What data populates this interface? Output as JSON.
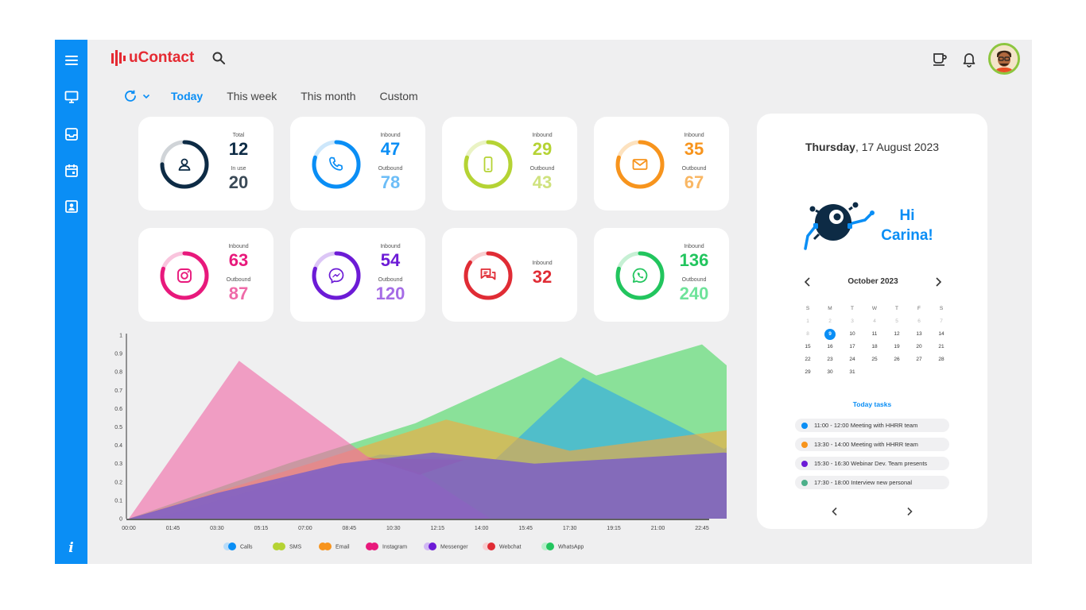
{
  "app": {
    "name": "uContact"
  },
  "sidebar": {
    "items": [
      {
        "name": "menu",
        "icon": "hamburger-menu-icon"
      },
      {
        "name": "monitor",
        "icon": "monitor-icon"
      },
      {
        "name": "inbox",
        "icon": "inbox-icon"
      },
      {
        "name": "calendar",
        "icon": "calendar-icon"
      },
      {
        "name": "contacts",
        "icon": "contact-card-icon"
      }
    ],
    "info_label": "i"
  },
  "period": {
    "tabs": [
      {
        "label": "Today",
        "active": true
      },
      {
        "label": "This week",
        "active": false
      },
      {
        "label": "This month",
        "active": false
      },
      {
        "label": "Custom",
        "active": false
      }
    ]
  },
  "cards": [
    {
      "id": "agents",
      "icon": "user-icon",
      "color": "#0d2b45",
      "light": "#d0d4d8",
      "label1": "Total",
      "value1": "12",
      "label2": "In use",
      "value2": "20",
      "value2_color": "#3b4a57",
      "fill": 0.75
    },
    {
      "id": "calls",
      "icon": "phone-icon",
      "color": "#0a8ef5",
      "light": "#cde7fb",
      "label1": "Inbound",
      "value1": "47",
      "label2": "Outbound",
      "value2": "78",
      "value2_color": "#6cbdf7",
      "fill": 0.8
    },
    {
      "id": "sms",
      "icon": "mobile-icon",
      "color": "#b5d334",
      "light": "#eaf3c4",
      "label1": "Inbound",
      "value1": "29",
      "label2": "Outbound",
      "value2": "43",
      "value2_color": "#cfe27e",
      "fill": 0.8
    },
    {
      "id": "email",
      "icon": "envelope-icon",
      "color": "#f7941d",
      "light": "#fde2bf",
      "label1": "Inbound",
      "value1": "35",
      "label2": "Outbound",
      "value2": "67",
      "value2_color": "#f9b764",
      "fill": 0.8
    },
    {
      "id": "instagram",
      "icon": "instagram-icon",
      "color": "#e8197c",
      "light": "#f9c4dd",
      "label1": "Inbound",
      "value1": "63",
      "label2": "Outbound",
      "value2": "87",
      "value2_color": "#ef6aa8",
      "fill": 0.8
    },
    {
      "id": "messenger",
      "icon": "messenger-icon",
      "color": "#6c1bd6",
      "light": "#dcc6f6",
      "label1": "Inbound",
      "value1": "54",
      "label2": "Outbound",
      "value2": "120",
      "value2_color": "#a56ce6",
      "fill": 0.8
    },
    {
      "id": "webchat",
      "icon": "chat-bubbles-icon",
      "color": "#e02c35",
      "light": "#f8cfd1",
      "label1": "Inbound",
      "value1": "32",
      "fill": 0.85
    },
    {
      "id": "whatsapp",
      "icon": "whatsapp-icon",
      "color": "#22c55e",
      "light": "#c6f0d4",
      "label1": "Inbound",
      "value1": "136",
      "label2": "Outbound",
      "value2": "240",
      "value2_color": "#6ee39a",
      "fill": 0.8
    }
  ],
  "chart_data": {
    "type": "area",
    "x": [
      "00:00",
      "01:45",
      "03:30",
      "05:15",
      "07:00",
      "08:45",
      "10:30",
      "12:15",
      "14:00",
      "15:45",
      "17:30",
      "19:15",
      "21:00",
      "22:45"
    ],
    "ylim": [
      0,
      1
    ],
    "yticks": [
      "0",
      "0.1",
      "0.2",
      "0.3",
      "0.4",
      "0.5",
      "0.6",
      "0.7",
      "0.8",
      "0.9",
      "1"
    ],
    "legend_position": "bottom",
    "series": [
      {
        "name": "WhatsApp",
        "color": "#4cd964",
        "points": [
          [
            0,
            0
          ],
          [
            3.6,
            0.3
          ],
          [
            6.5,
            0.52
          ],
          [
            9.8,
            0.88
          ],
          [
            10.6,
            0.78
          ],
          [
            13.0,
            0.95
          ],
          [
            15.2,
            0.5
          ],
          [
            18.5,
            0
          ]
        ]
      },
      {
        "name": "Calls",
        "color": "#2da8e8",
        "points": [
          [
            0.6,
            0
          ],
          [
            3.5,
            0.2
          ],
          [
            5.7,
            0.35
          ],
          [
            8.3,
            0.32
          ],
          [
            10.3,
            0.77
          ],
          [
            13.5,
            0.38
          ],
          [
            14.9,
            0.58
          ],
          [
            18.5,
            0
          ]
        ]
      },
      {
        "name": "Email",
        "color": "#f5a83c",
        "points": [
          [
            0,
            0
          ],
          [
            4.1,
            0.3
          ],
          [
            7.2,
            0.54
          ],
          [
            10.0,
            0.37
          ],
          [
            13.5,
            0.48
          ],
          [
            17.2,
            0.62
          ],
          [
            20.0,
            0
          ]
        ]
      },
      {
        "name": "Instagram",
        "color": "#f06aa8",
        "points": [
          [
            0,
            0
          ],
          [
            2.5,
            0.86
          ],
          [
            5.4,
            0.34
          ],
          [
            6.6,
            0.25
          ],
          [
            8.2,
            0
          ]
        ]
      },
      {
        "name": "Webchat",
        "color": "#e0525a",
        "points": [
          [
            5.4,
            0.33
          ],
          [
            6.6,
            0.24
          ],
          [
            7.6,
            0.32
          ]
        ]
      },
      {
        "name": "Messenger",
        "color": "#7b5fc7",
        "points": [
          [
            0,
            0
          ],
          [
            2.0,
            0.14
          ],
          [
            4.8,
            0.3
          ],
          [
            6.9,
            0.36
          ],
          [
            9.2,
            0.3
          ],
          [
            13.5,
            0.36
          ],
          [
            16.5,
            0.28
          ],
          [
            18.3,
            0
          ]
        ]
      }
    ],
    "legend": [
      {
        "name": "Calls",
        "color": "#0a8ef5",
        "light": "#b9dcf9"
      },
      {
        "name": "SMS",
        "color": "#b5d334",
        "light": "#b5d334"
      },
      {
        "name": "Email",
        "color": "#f7941d",
        "light": "#f7941d"
      },
      {
        "name": "Instagram",
        "color": "#e8197c",
        "light": "#e8197c"
      },
      {
        "name": "Messenger",
        "color": "#6c1bd6",
        "light": "#d1b8f4"
      },
      {
        "name": "Webchat",
        "color": "#e02c35",
        "light": "#f8d0d2"
      },
      {
        "name": "WhatsApp",
        "color": "#22c55e",
        "light": "#b8f0cb"
      }
    ]
  },
  "right_panel": {
    "weekday": "Thursday",
    "date_rest": ", 17 August 2023",
    "greeting_line1": "Hi",
    "greeting_line2": "Carina!",
    "calendar": {
      "month": "October 2023",
      "weekdays": [
        "S",
        "M",
        "T",
        "W",
        "T",
        "F",
        "S"
      ],
      "weeks": [
        [
          {
            "d": "1",
            "m": true
          },
          {
            "d": "2",
            "m": true
          },
          {
            "d": "3",
            "m": true
          },
          {
            "d": "4",
            "m": true
          },
          {
            "d": "5",
            "m": true
          },
          {
            "d": "6",
            "m": true
          },
          {
            "d": "7",
            "m": true
          }
        ],
        [
          {
            "d": "8",
            "m": true
          },
          {
            "d": "9",
            "sel": true
          },
          {
            "d": "10"
          },
          {
            "d": "11"
          },
          {
            "d": "12"
          },
          {
            "d": "13"
          },
          {
            "d": "14"
          }
        ],
        [
          {
            "d": "15"
          },
          {
            "d": "16"
          },
          {
            "d": "17"
          },
          {
            "d": "18"
          },
          {
            "d": "19"
          },
          {
            "d": "20"
          },
          {
            "d": "21"
          }
        ],
        [
          {
            "d": "22"
          },
          {
            "d": "23"
          },
          {
            "d": "24"
          },
          {
            "d": "25"
          },
          {
            "d": "26"
          },
          {
            "d": "27"
          },
          {
            "d": "28"
          }
        ],
        [
          {
            "d": "29"
          },
          {
            "d": "30"
          },
          {
            "d": "31"
          }
        ]
      ]
    },
    "tasks_title": "Today tasks",
    "tasks": [
      {
        "text": "11:00 - 12:00 Meeting with HHRR team",
        "color": "#0a8ef5"
      },
      {
        "text": "13:30 - 14:00 Meeting with HHRR team",
        "color": "#f7941d"
      },
      {
        "text": "15:30 - 16:30 Webinar Dev. Team presents",
        "color": "#6c1bd6"
      },
      {
        "text": "17:30 - 18:00 Interview new personal",
        "color": "#4caf8a"
      }
    ]
  }
}
